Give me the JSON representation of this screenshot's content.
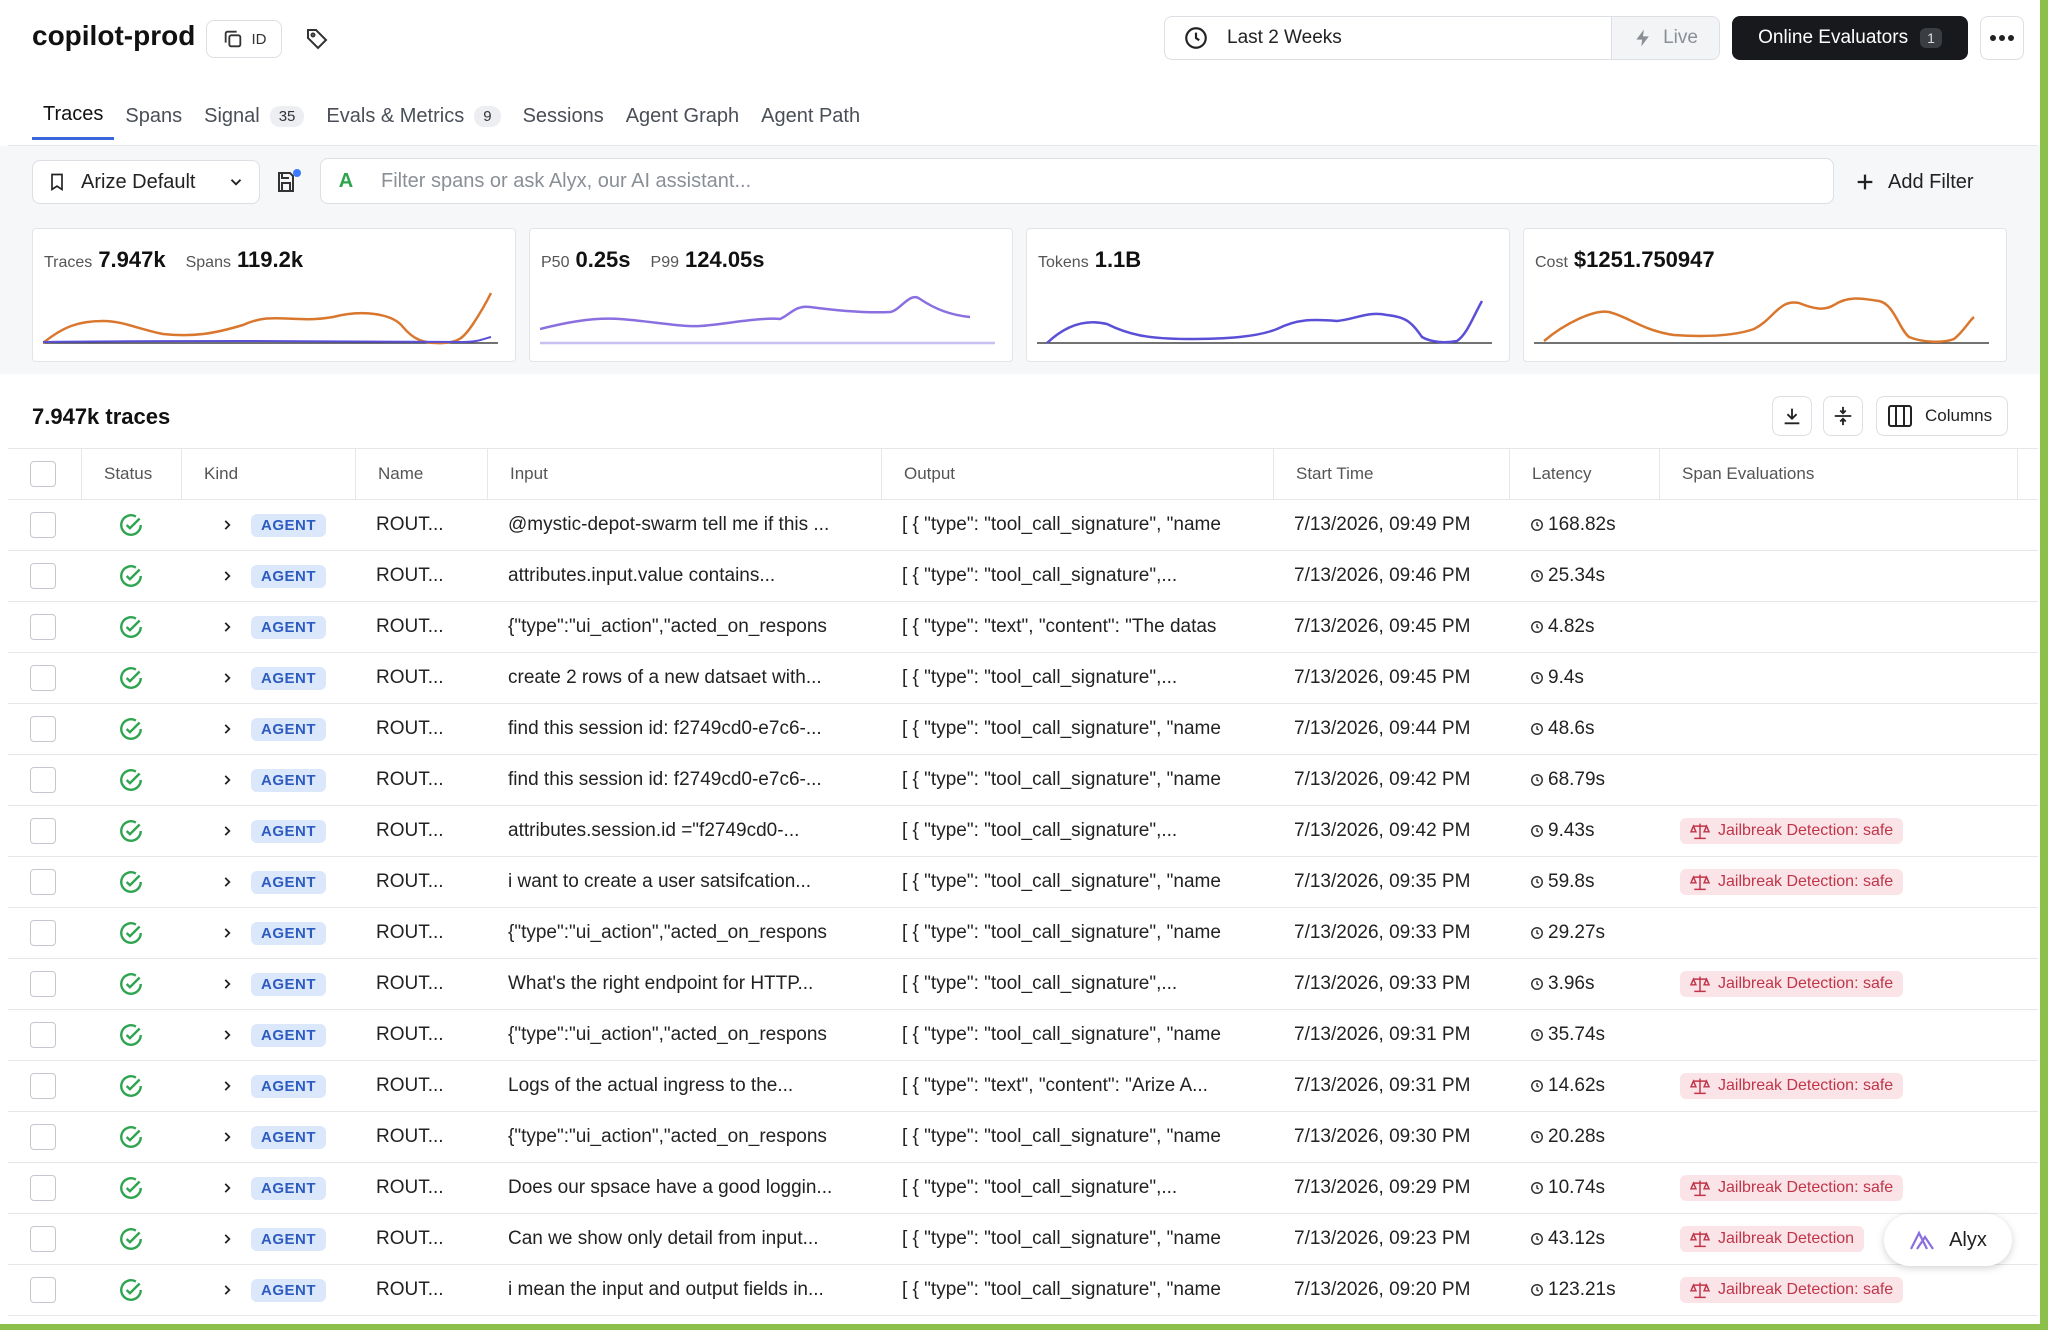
{
  "header": {
    "project_title": "copilot-prod",
    "id_label": "ID",
    "time_range": "Last 2 Weeks",
    "live_label": "Live",
    "online_evaluators_label": "Online Evaluators",
    "online_evaluators_count": "1"
  },
  "tabs": [
    {
      "label": "Traces",
      "badge": null,
      "active": true
    },
    {
      "label": "Spans",
      "badge": null
    },
    {
      "label": "Signal",
      "badge": "35"
    },
    {
      "label": "Evals & Metrics",
      "badge": "9"
    },
    {
      "label": "Sessions",
      "badge": null
    },
    {
      "label": "Agent Graph",
      "badge": null
    },
    {
      "label": "Agent Path",
      "badge": null
    }
  ],
  "filter": {
    "view_name": "Arize Default",
    "alyx_letter": "A",
    "placeholder": "Filter spans or ask Alyx, our AI assistant...",
    "add_filter_label": "Add Filter"
  },
  "metrics": {
    "traces_label": "Traces",
    "traces_value": "7.947k",
    "spans_label": "Spans",
    "spans_value": "119.2k",
    "p50_label": "P50",
    "p50_value": "0.25s",
    "p99_label": "P99",
    "p99_value": "124.05s",
    "tokens_label": "Tokens",
    "tokens_value": "1.1B",
    "cost_label": "Cost",
    "cost_value": "$1251.750947",
    "colors": {
      "orange": "#d9772f",
      "purple": "#8a6fe0",
      "blue": "#5a4fd6",
      "light_purple": "#c9bff2"
    }
  },
  "table": {
    "count_title": "7.947k traces",
    "columns_label": "Columns",
    "headers": {
      "status": "Status",
      "kind": "Kind",
      "name": "Name",
      "input": "Input",
      "output": "Output",
      "start_time": "Start Time",
      "latency": "Latency",
      "span_evaluations": "Span Evaluations"
    },
    "rows": [
      {
        "kind": "AGENT",
        "name": "ROUT...",
        "input": "@mystic-depot-swarm tell me if this ...",
        "output": "[ { \"type\": \"tool_call_signature\", \"name",
        "start_time": "7/13/2026, 09:49 PM",
        "latency": "168.82s",
        "eval": ""
      },
      {
        "kind": "AGENT",
        "name": "ROUT...",
        "input": "attributes.input.value contains...",
        "output": "[ { \"type\": \"tool_call_signature\",...",
        "start_time": "7/13/2026, 09:46 PM",
        "latency": "25.34s",
        "eval": ""
      },
      {
        "kind": "AGENT",
        "name": "ROUT...",
        "input": "{\"type\":\"ui_action\",\"acted_on_respons",
        "output": "[ { \"type\": \"text\", \"content\": \"The datas",
        "start_time": "7/13/2026, 09:45 PM",
        "latency": "4.82s",
        "eval": ""
      },
      {
        "kind": "AGENT",
        "name": "ROUT...",
        "input": "create 2 rows of a new datsaet with...",
        "output": "[ { \"type\": \"tool_call_signature\",...",
        "start_time": "7/13/2026, 09:45 PM",
        "latency": "9.4s",
        "eval": ""
      },
      {
        "kind": "AGENT",
        "name": "ROUT...",
        "input": "find this session id: f2749cd0-e7c6-...",
        "output": "[ { \"type\": \"tool_call_signature\", \"name",
        "start_time": "7/13/2026, 09:44 PM",
        "latency": "48.6s",
        "eval": ""
      },
      {
        "kind": "AGENT",
        "name": "ROUT...",
        "input": "find this session id: f2749cd0-e7c6-...",
        "output": "[ { \"type\": \"tool_call_signature\", \"name",
        "start_time": "7/13/2026, 09:42 PM",
        "latency": "68.79s",
        "eval": ""
      },
      {
        "kind": "AGENT",
        "name": "ROUT...",
        "input": "attributes.session.id =\"f2749cd0-...",
        "output": "[ { \"type\": \"tool_call_signature\",...",
        "start_time": "7/13/2026, 09:42 PM",
        "latency": "9.43s",
        "eval": "Jailbreak Detection: safe"
      },
      {
        "kind": "AGENT",
        "name": "ROUT...",
        "input": "i want to create a user satsifcation...",
        "output": "[ { \"type\": \"tool_call_signature\", \"name",
        "start_time": "7/13/2026, 09:35 PM",
        "latency": "59.8s",
        "eval": "Jailbreak Detection: safe"
      },
      {
        "kind": "AGENT",
        "name": "ROUT...",
        "input": "{\"type\":\"ui_action\",\"acted_on_respons",
        "output": "[ { \"type\": \"tool_call_signature\", \"name",
        "start_time": "7/13/2026, 09:33 PM",
        "latency": "29.27s",
        "eval": ""
      },
      {
        "kind": "AGENT",
        "name": "ROUT...",
        "input": "What's the right endpoint for HTTP...",
        "output": "[ { \"type\": \"tool_call_signature\",...",
        "start_time": "7/13/2026, 09:33 PM",
        "latency": "3.96s",
        "eval": "Jailbreak Detection: safe"
      },
      {
        "kind": "AGENT",
        "name": "ROUT...",
        "input": "{\"type\":\"ui_action\",\"acted_on_respons",
        "output": "[ { \"type\": \"tool_call_signature\", \"name",
        "start_time": "7/13/2026, 09:31 PM",
        "latency": "35.74s",
        "eval": ""
      },
      {
        "kind": "AGENT",
        "name": "ROUT...",
        "input": "Logs of the actual ingress to the...",
        "output": "[ { \"type\": \"text\", \"content\": \"Arize A...",
        "start_time": "7/13/2026, 09:31 PM",
        "latency": "14.62s",
        "eval": "Jailbreak Detection: safe"
      },
      {
        "kind": "AGENT",
        "name": "ROUT...",
        "input": "{\"type\":\"ui_action\",\"acted_on_respons",
        "output": "[ { \"type\": \"tool_call_signature\", \"name",
        "start_time": "7/13/2026, 09:30 PM",
        "latency": "20.28s",
        "eval": ""
      },
      {
        "kind": "AGENT",
        "name": "ROUT...",
        "input": "Does our spsace have a good loggin...",
        "output": "[ { \"type\": \"tool_call_signature\",...",
        "start_time": "7/13/2026, 09:29 PM",
        "latency": "10.74s",
        "eval": "Jailbreak Detection: safe"
      },
      {
        "kind": "AGENT",
        "name": "ROUT...",
        "input": "Can we show only detail from input...",
        "output": "[ { \"type\": \"tool_call_signature\", \"name",
        "start_time": "7/13/2026, 09:23 PM",
        "latency": "43.12s",
        "eval": "Jailbreak Detection"
      },
      {
        "kind": "AGENT",
        "name": "ROUT...",
        "input": "i mean the input and output fields in...",
        "output": "[ { \"type\": \"tool_call_signature\", \"name",
        "start_time": "7/13/2026, 09:20 PM",
        "latency": "123.21s",
        "eval": "Jailbreak Detection: safe"
      }
    ]
  },
  "alyx_button_label": "Alyx"
}
